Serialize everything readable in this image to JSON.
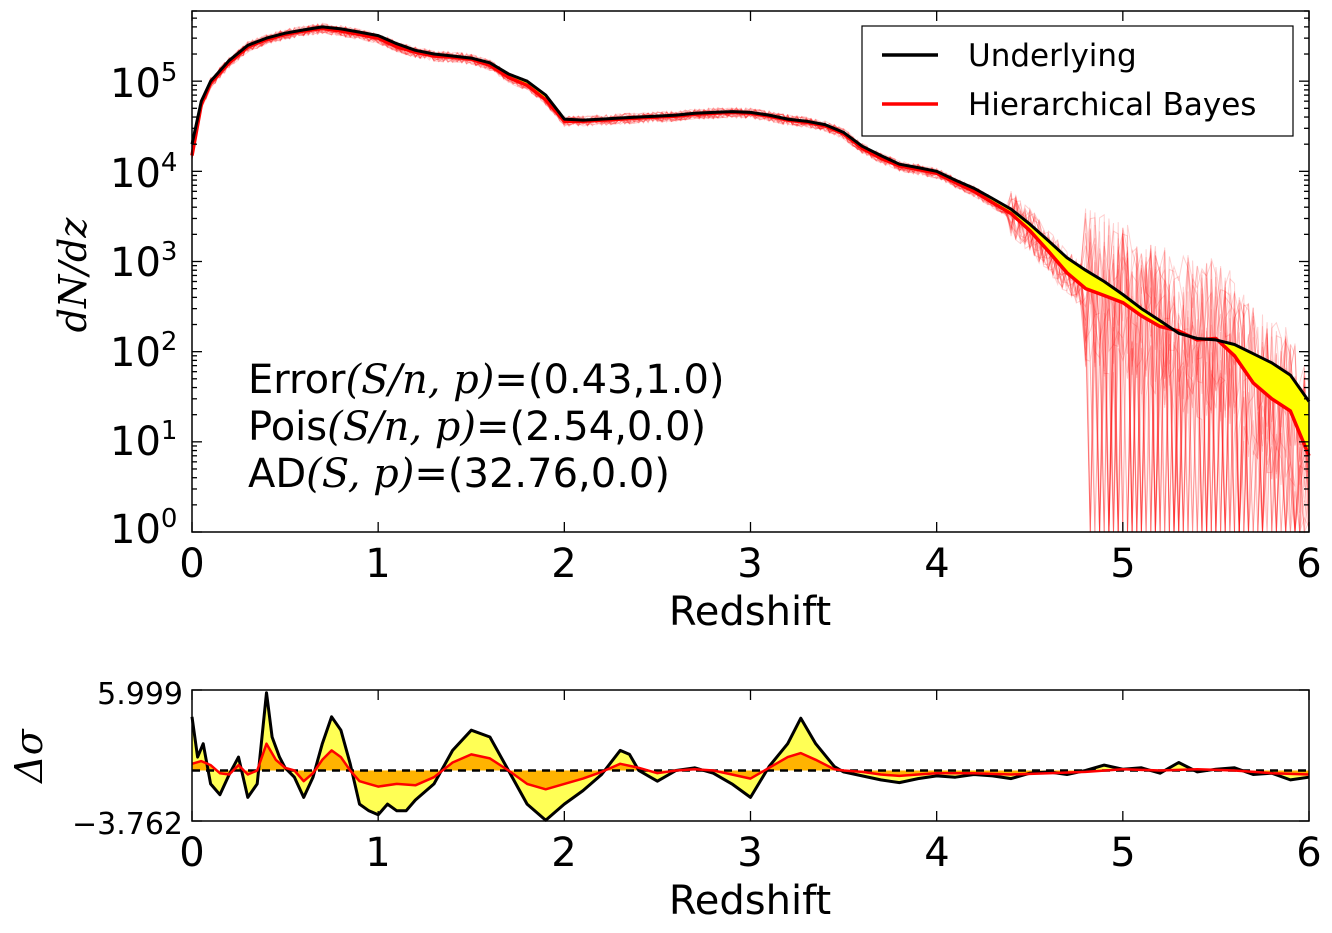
{
  "chart_data": [
    {
      "type": "line",
      "log_y": true,
      "xlabel": "Redshift",
      "ylabel": "dN/dz",
      "xlim": [
        0,
        6
      ],
      "ylim": [
        1,
        600000
      ],
      "x_ticks": [
        0,
        1,
        2,
        3,
        4,
        5,
        6
      ],
      "x_tick_labels": [
        "0",
        "1",
        "2",
        "3",
        "4",
        "5",
        "6"
      ],
      "y_ticks": [
        {
          "value": 1,
          "base": "10",
          "exp": "0"
        },
        {
          "value": 10,
          "base": "10",
          "exp": "1"
        },
        {
          "value": 100,
          "base": "10",
          "exp": "2"
        },
        {
          "value": 1000,
          "base": "10",
          "exp": "3"
        },
        {
          "value": 10000,
          "base": "10",
          "exp": "4"
        },
        {
          "value": 100000,
          "base": "10",
          "exp": "5"
        }
      ],
      "legend": {
        "position": "top-right",
        "entries": [
          {
            "label": "Underlying",
            "color": "#000000"
          },
          {
            "label": "Hierarchical Bayes",
            "color": "#ff0000"
          }
        ]
      },
      "annotations": [
        {
          "prefix": "Error",
          "math": "(S/n, p)",
          "suffix": "=(0.43,1.0)"
        },
        {
          "prefix": "Pois",
          "math": "(S/n, p)",
          "suffix": "=(2.54,0.0)"
        },
        {
          "prefix": "AD",
          "math": "(S, p)",
          "suffix": "=(32.76,0.0)"
        }
      ],
      "fill_color": "#ffff00",
      "series": [
        {
          "name": "Underlying",
          "color": "#000000",
          "x": [
            0,
            0.05,
            0.1,
            0.2,
            0.3,
            0.4,
            0.5,
            0.6,
            0.7,
            0.8,
            0.9,
            1.0,
            1.1,
            1.2,
            1.3,
            1.4,
            1.5,
            1.6,
            1.7,
            1.8,
            1.9,
            2.0,
            2.1,
            2.2,
            2.3,
            2.4,
            2.5,
            2.6,
            2.7,
            2.8,
            2.9,
            3.0,
            3.1,
            3.2,
            3.3,
            3.4,
            3.5,
            3.6,
            3.7,
            3.8,
            3.9,
            4.0,
            4.1,
            4.2,
            4.3,
            4.4,
            4.5,
            4.6,
            4.7,
            4.8,
            4.9,
            5.0,
            5.1,
            5.2,
            5.3,
            5.4,
            5.5,
            5.6,
            5.7,
            5.8,
            5.9,
            6.0
          ],
          "y": [
            20000,
            60000,
            100000,
            170000,
            250000,
            300000,
            340000,
            370000,
            400000,
            380000,
            350000,
            320000,
            260000,
            220000,
            200000,
            190000,
            180000,
            160000,
            120000,
            100000,
            70000,
            38000,
            37000,
            38000,
            39000,
            40000,
            41000,
            42000,
            44000,
            45000,
            46000,
            45000,
            42000,
            38000,
            36000,
            33000,
            27000,
            19000,
            15000,
            12000,
            11000,
            10000,
            8000,
            6500,
            5000,
            3800,
            2600,
            1700,
            1100,
            800,
            600,
            430,
            300,
            220,
            160,
            140,
            135,
            120,
            95,
            75,
            55,
            28
          ]
        },
        {
          "name": "Hierarchical Bayes",
          "color": "#ff0000",
          "x": [
            0,
            0.05,
            0.1,
            0.2,
            0.3,
            0.4,
            0.5,
            0.6,
            0.7,
            0.8,
            0.9,
            1.0,
            1.1,
            1.2,
            1.3,
            1.4,
            1.5,
            1.6,
            1.7,
            1.8,
            1.9,
            2.0,
            2.1,
            2.2,
            2.3,
            2.4,
            2.5,
            2.6,
            2.7,
            2.8,
            2.9,
            3.0,
            3.1,
            3.2,
            3.3,
            3.4,
            3.5,
            3.6,
            3.7,
            3.8,
            3.9,
            4.0,
            4.1,
            4.2,
            4.3,
            4.4,
            4.5,
            4.6,
            4.7,
            4.8,
            4.9,
            5.0,
            5.1,
            5.2,
            5.3,
            5.4,
            5.5,
            5.6,
            5.7,
            5.8,
            5.9,
            6.0
          ],
          "y": [
            15000,
            55000,
            95000,
            160000,
            240000,
            290000,
            330000,
            360000,
            385000,
            360000,
            330000,
            300000,
            240000,
            210000,
            190000,
            185000,
            175000,
            150000,
            110000,
            90000,
            62000,
            36000,
            36000,
            37000,
            38000,
            39000,
            40000,
            41000,
            43000,
            44000,
            45000,
            44000,
            41000,
            37000,
            35000,
            32000,
            26000,
            18000,
            14000,
            11500,
            10500,
            9500,
            7500,
            6000,
            4500,
            3400,
            2200,
            1300,
            750,
            500,
            420,
            350,
            250,
            190,
            170,
            135,
            140,
            90,
            45,
            30,
            22,
            7
          ]
        }
      ]
    },
    {
      "type": "line",
      "xlabel": "Redshift",
      "ylabel": "Δσ",
      "xlim": [
        0,
        6
      ],
      "ylim": [
        -3.762,
        5.999
      ],
      "x_ticks": [
        0,
        1,
        2,
        3,
        4,
        5,
        6
      ],
      "x_tick_labels": [
        "0",
        "1",
        "2",
        "3",
        "4",
        "5",
        "6"
      ],
      "y_tick_labels": [
        "5.999",
        "−3.762"
      ],
      "reference_line": 0,
      "fill_colors": {
        "outer": "#ffff55",
        "inner": "#ffb300"
      },
      "series": [
        {
          "color": "#000000",
          "x": [
            0,
            0.03,
            0.06,
            0.1,
            0.15,
            0.2,
            0.25,
            0.3,
            0.35,
            0.4,
            0.43,
            0.47,
            0.5,
            0.55,
            0.6,
            0.65,
            0.7,
            0.75,
            0.8,
            0.85,
            0.9,
            0.95,
            1.0,
            1.05,
            1.1,
            1.15,
            1.2,
            1.3,
            1.4,
            1.5,
            1.6,
            1.7,
            1.8,
            1.9,
            2.0,
            2.1,
            2.2,
            2.3,
            2.35,
            2.4,
            2.5,
            2.6,
            2.7,
            2.8,
            2.9,
            3.0,
            3.1,
            3.2,
            3.27,
            3.35,
            3.45,
            3.5,
            3.6,
            3.7,
            3.8,
            3.9,
            4.0,
            4.1,
            4.2,
            4.3,
            4.4,
            4.5,
            4.6,
            4.7,
            4.8,
            4.9,
            5.0,
            5.1,
            5.2,
            5.3,
            5.4,
            5.5,
            5.6,
            5.7,
            5.8,
            5.9,
            6.0
          ],
          "y": [
            4.0,
            1.0,
            2.0,
            -1.0,
            -1.8,
            -0.3,
            1.0,
            -2.0,
            -1.0,
            5.8,
            2.5,
            1.0,
            0.2,
            -0.5,
            -2.0,
            -0.5,
            2.0,
            4.0,
            3.0,
            0.5,
            -2.5,
            -3.0,
            -3.3,
            -2.5,
            -3.0,
            -3.0,
            -2.2,
            -1.0,
            1.5,
            3.0,
            2.5,
            0.0,
            -2.5,
            -3.7,
            -2.5,
            -1.5,
            -0.3,
            1.5,
            1.2,
            0.0,
            -0.8,
            0.0,
            0.2,
            -0.2,
            -1.0,
            -2.0,
            0.3,
            2.0,
            3.9,
            2.0,
            0.3,
            -0.1,
            -0.4,
            -0.7,
            -0.9,
            -0.6,
            -0.4,
            -0.5,
            -0.3,
            -0.4,
            -0.6,
            -0.2,
            -0.1,
            -0.3,
            0.0,
            0.4,
            0.1,
            0.2,
            -0.2,
            0.6,
            -0.1,
            0.1,
            0.2,
            -0.3,
            -0.2,
            -0.7,
            -0.5
          ]
        },
        {
          "color": "#ff0000",
          "x": [
            0,
            0.05,
            0.1,
            0.15,
            0.2,
            0.25,
            0.3,
            0.35,
            0.4,
            0.45,
            0.5,
            0.55,
            0.6,
            0.65,
            0.7,
            0.75,
            0.8,
            0.85,
            0.9,
            0.95,
            1.0,
            1.1,
            1.2,
            1.3,
            1.4,
            1.5,
            1.6,
            1.7,
            1.8,
            1.9,
            2.0,
            2.1,
            2.2,
            2.3,
            2.4,
            2.5,
            2.6,
            2.7,
            2.8,
            2.9,
            3.0,
            3.1,
            3.2,
            3.27,
            3.35,
            3.45,
            3.5,
            3.6,
            3.7,
            3.8,
            3.9,
            4.0,
            4.2,
            4.4,
            4.6,
            4.8,
            5.0,
            5.2,
            5.4,
            5.6,
            5.8,
            6.0
          ],
          "y": [
            0.5,
            0.7,
            0.4,
            -0.2,
            -0.3,
            0.4,
            -0.3,
            0.0,
            2.0,
            0.8,
            0.2,
            0.0,
            -0.8,
            -0.2,
            0.8,
            1.5,
            1.0,
            0.0,
            -0.8,
            -1.0,
            -1.2,
            -1.0,
            -1.1,
            -0.5,
            0.6,
            1.2,
            0.9,
            0.0,
            -1.0,
            -1.4,
            -1.0,
            -0.6,
            -0.1,
            0.5,
            0.2,
            -0.2,
            0.0,
            0.1,
            0.0,
            -0.3,
            -0.6,
            0.2,
            1.0,
            1.3,
            0.8,
            0.1,
            0.0,
            -0.1,
            -0.3,
            -0.4,
            -0.3,
            -0.2,
            -0.2,
            -0.3,
            -0.2,
            -0.1,
            0.1,
            0.0,
            0.1,
            0.0,
            -0.2,
            -0.3
          ]
        }
      ]
    }
  ]
}
